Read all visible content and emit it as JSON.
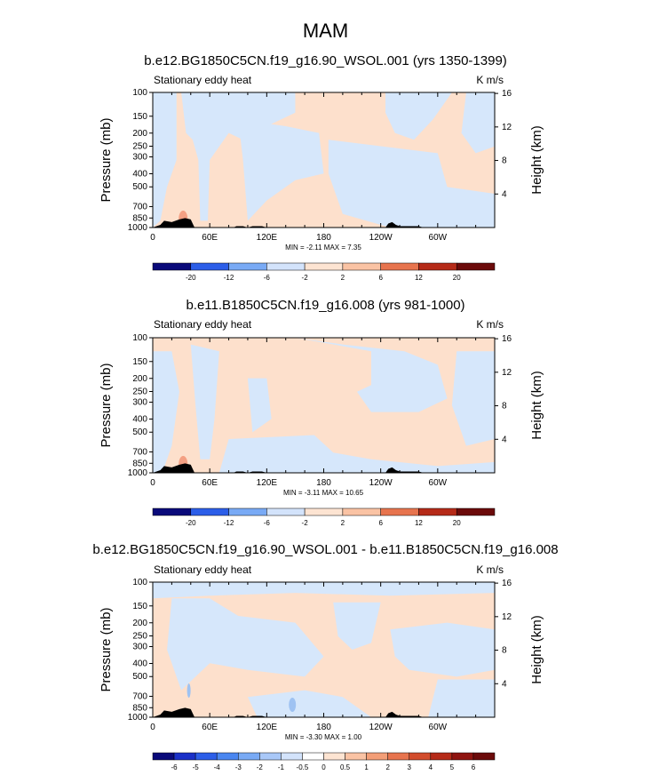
{
  "page": {
    "season": "MAM"
  },
  "colors": {
    "warm": "#fde0cc",
    "cool": "#d6e7fb",
    "topo": "#000000",
    "hot_spot": "#f4a083",
    "cold_spot": "#9ec2f2"
  },
  "chart_data": [
    {
      "type": "heatmap",
      "title": "b.e12.BG1850C5CN.f19_g16.90_WSOL.001 (yrs 1350-1399)",
      "left_label": "Stationary eddy heat",
      "units": "K m/s",
      "xlabel": "",
      "ylabel": "Pressure (mb)",
      "y2label": "Height (km)",
      "x_ticks": [
        "0",
        "60E",
        "120E",
        "180",
        "120W",
        "60W"
      ],
      "y_ticks": [
        "100",
        "150",
        "200",
        "250",
        "300",
        "400",
        "500",
        "700",
        "850",
        "1000"
      ],
      "y2_ticks": [
        "16",
        "12",
        "8",
        "4"
      ],
      "stats": "MIN =  -2.11  MAX =   7.35",
      "colorbar_ticks": [
        "-20",
        "-12",
        "-6",
        "-2",
        "2",
        "6",
        "12",
        "20"
      ],
      "min": -2.11,
      "max": 7.35
    },
    {
      "type": "heatmap",
      "title": "b.e11.B1850C5CN.f19_g16.008 (yrs 981-1000)",
      "left_label": "Stationary eddy heat",
      "units": "K m/s",
      "xlabel": "",
      "ylabel": "Pressure (mb)",
      "y2label": "Height (km)",
      "x_ticks": [
        "0",
        "60E",
        "120E",
        "180",
        "120W",
        "60W"
      ],
      "y_ticks": [
        "100",
        "150",
        "200",
        "250",
        "300",
        "400",
        "500",
        "700",
        "850",
        "1000"
      ],
      "y2_ticks": [
        "16",
        "12",
        "8",
        "4"
      ],
      "stats": "MIN =  -3.11  MAX =  10.65",
      "colorbar_ticks": [
        "-20",
        "-12",
        "-6",
        "-2",
        "2",
        "6",
        "12",
        "20"
      ],
      "min": -3.11,
      "max": 10.65
    },
    {
      "type": "heatmap",
      "title": "b.e12.BG1850C5CN.f19_g16.90_WSOL.001 - b.e11.B1850C5CN.f19_g16.008",
      "left_label": "Stationary eddy heat",
      "units": "K m/s",
      "xlabel": "",
      "ylabel": "Pressure (mb)",
      "y2label": "Height (km)",
      "x_ticks": [
        "0",
        "60E",
        "120E",
        "180",
        "120W",
        "60W"
      ],
      "y_ticks": [
        "100",
        "150",
        "200",
        "250",
        "300",
        "400",
        "500",
        "700",
        "850",
        "1000"
      ],
      "y2_ticks": [
        "16",
        "12",
        "8",
        "4"
      ],
      "stats": "MIN =  -3.30  MAX =   1.00",
      "colorbar_ticks": [
        "-6",
        "-5",
        "-4",
        "-3",
        "-2",
        "-1",
        "-0.5",
        "0",
        "0.5",
        "1",
        "2",
        "3",
        "4",
        "5",
        "6"
      ],
      "min": -3.3,
      "max": 1.0
    }
  ],
  "colorbar_colors": [
    "#0a0a7a",
    "#1a30c8",
    "#2c5ee8",
    "#4a86f0",
    "#79aaf5",
    "#a9c8f8",
    "#d3e3fb",
    "#ffffff",
    "#fde4d2",
    "#fac3a4",
    "#f39e77",
    "#e7744e",
    "#d24c2c",
    "#b52a18",
    "#8f1410",
    "#6b0a0a"
  ]
}
